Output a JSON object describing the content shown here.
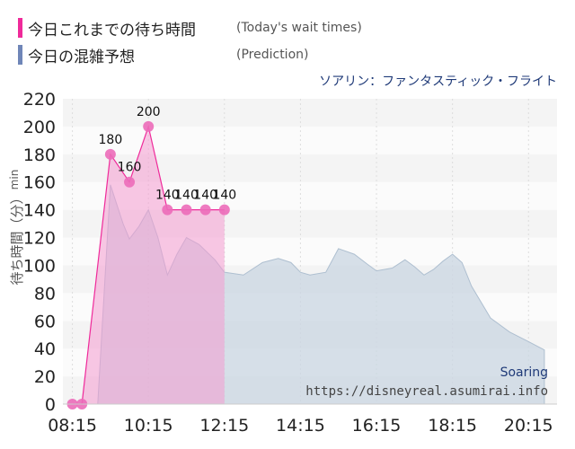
{
  "legend": {
    "today_label": "今日これまでの待ち時間",
    "today_note": "(Today's wait times)",
    "predict_label": "今日の混雑予想",
    "predict_note": "(Prediction)"
  },
  "attraction_name": "ソアリン：ファンタスティック・フライト",
  "watermark": {
    "name": "Soaring",
    "url": "https://disneyreal.asumirai.info"
  },
  "colors": {
    "today": "#ef2a9a",
    "prediction": "#6f86b8"
  },
  "chart_data": {
    "type": "area",
    "ylabel": "待ち時間（分）",
    "yunit": "min",
    "ylim": [
      0,
      220
    ],
    "yticks": [
      0,
      20,
      40,
      60,
      80,
      100,
      120,
      140,
      160,
      180,
      200,
      220
    ],
    "xlim": [
      "08:00",
      "21:00"
    ],
    "xticks": [
      "08:15",
      "10:15",
      "12:15",
      "14:15",
      "16:15",
      "18:15",
      "20:15"
    ],
    "series": [
      {
        "name": "今日これまでの待ち時間",
        "type": "line-markers",
        "points": [
          {
            "t": "08:15",
            "v": 0
          },
          {
            "t": "08:30",
            "v": 0
          },
          {
            "t": "09:15",
            "v": 180
          },
          {
            "t": "09:45",
            "v": 160
          },
          {
            "t": "10:15",
            "v": 200
          },
          {
            "t": "10:45",
            "v": 140
          },
          {
            "t": "11:15",
            "v": 140
          },
          {
            "t": "11:45",
            "v": 140
          },
          {
            "t": "12:15",
            "v": 140
          }
        ],
        "labels": [
          {
            "t": "09:15",
            "text": "180"
          },
          {
            "t": "09:45",
            "text": "160"
          },
          {
            "t": "10:15",
            "text": "200"
          },
          {
            "t": "10:45",
            "text": "140"
          },
          {
            "t": "11:15",
            "text": "140"
          },
          {
            "t": "11:45",
            "text": "140"
          },
          {
            "t": "12:15",
            "text": "140"
          }
        ]
      },
      {
        "name": "今日の混雑予想",
        "type": "area",
        "points": [
          {
            "t": "08:30",
            "v": 0
          },
          {
            "t": "08:55",
            "v": 0
          },
          {
            "t": "09:15",
            "v": 158
          },
          {
            "t": "09:35",
            "v": 130
          },
          {
            "t": "09:45",
            "v": 119
          },
          {
            "t": "10:00",
            "v": 128
          },
          {
            "t": "10:15",
            "v": 140
          },
          {
            "t": "10:30",
            "v": 120
          },
          {
            "t": "10:45",
            "v": 93
          },
          {
            "t": "11:00",
            "v": 108
          },
          {
            "t": "11:15",
            "v": 120
          },
          {
            "t": "11:35",
            "v": 115
          },
          {
            "t": "12:00",
            "v": 104
          },
          {
            "t": "12:15",
            "v": 95
          },
          {
            "t": "12:45",
            "v": 93
          },
          {
            "t": "13:15",
            "v": 102
          },
          {
            "t": "13:40",
            "v": 105
          },
          {
            "t": "14:00",
            "v": 102
          },
          {
            "t": "14:15",
            "v": 95
          },
          {
            "t": "14:30",
            "v": 93
          },
          {
            "t": "14:55",
            "v": 95
          },
          {
            "t": "15:15",
            "v": 112
          },
          {
            "t": "15:40",
            "v": 108
          },
          {
            "t": "16:00",
            "v": 101
          },
          {
            "t": "16:15",
            "v": 96
          },
          {
            "t": "16:40",
            "v": 98
          },
          {
            "t": "17:00",
            "v": 104
          },
          {
            "t": "17:15",
            "v": 99
          },
          {
            "t": "17:30",
            "v": 93
          },
          {
            "t": "17:45",
            "v": 97
          },
          {
            "t": "18:00",
            "v": 103
          },
          {
            "t": "18:15",
            "v": 108
          },
          {
            "t": "18:30",
            "v": 102
          },
          {
            "t": "18:45",
            "v": 85
          },
          {
            "t": "19:15",
            "v": 62
          },
          {
            "t": "19:45",
            "v": 52
          },
          {
            "t": "20:15",
            "v": 45
          },
          {
            "t": "20:40",
            "v": 39
          }
        ]
      }
    ]
  }
}
